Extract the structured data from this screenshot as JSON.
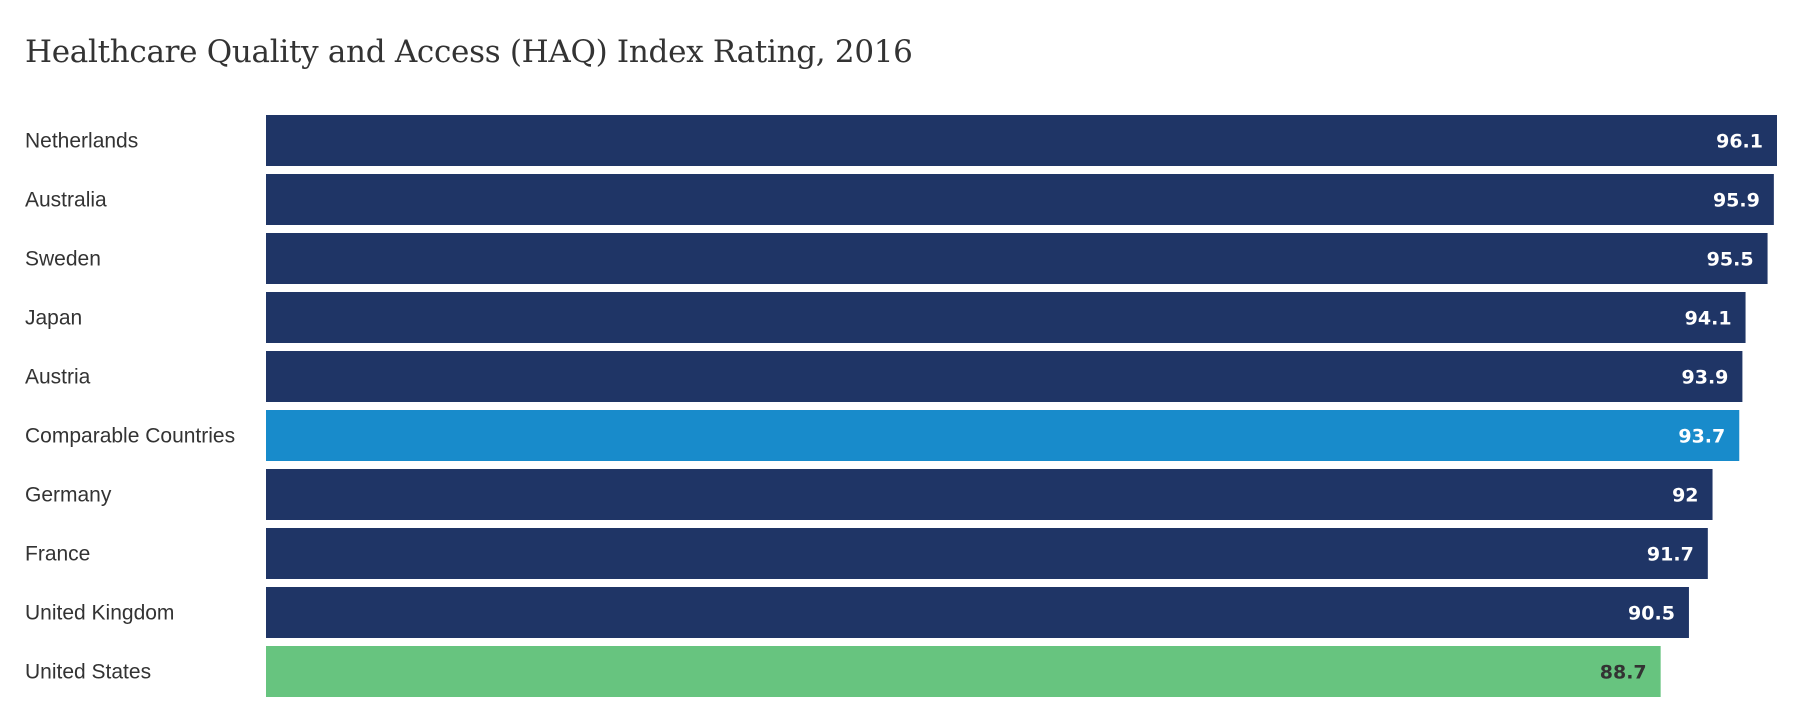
{
  "chart_data": {
    "type": "bar",
    "orientation": "horizontal",
    "title": "Healthcare Quality and Access (HAQ) Index Rating, 2016",
    "categories": [
      "Netherlands",
      "Australia",
      "Sweden",
      "Japan",
      "Austria",
      "Comparable Countries",
      "Germany",
      "France",
      "United Kingdom",
      "United States"
    ],
    "values": [
      96.1,
      95.9,
      95.5,
      94.1,
      93.9,
      93.7,
      92,
      91.7,
      90.5,
      88.7
    ],
    "value_labels": [
      "96.1",
      "95.9",
      "95.5",
      "94.1",
      "93.9",
      "93.7",
      "92",
      "91.7",
      "90.5",
      "88.7"
    ],
    "xlabel": "",
    "ylabel": "",
    "xlim": [
      0,
      96.1
    ],
    "grid": false,
    "legend": "none",
    "colors": {
      "default": "#1f3566",
      "Comparable Countries": "#188bcb",
      "United States": "#67c47f"
    },
    "label_colors": {
      "default": "#ffffff",
      "United States": "#333333"
    }
  }
}
